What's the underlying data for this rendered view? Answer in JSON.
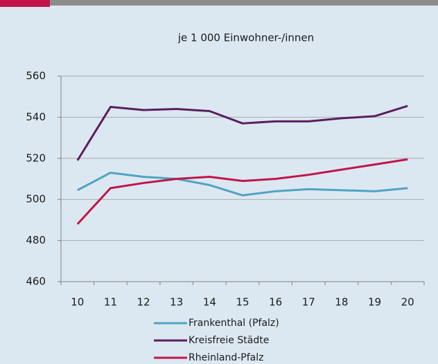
{
  "chart_data": {
    "type": "line",
    "title": "je 1 000 Einwohner-/innen",
    "categories": [
      "10",
      "11",
      "12",
      "13",
      "14",
      "15",
      "16",
      "17",
      "18",
      "19",
      "20"
    ],
    "series": [
      {
        "name": "Frankenthal (Pfalz)",
        "color": "#4fa3c4",
        "values": [
          504.5,
          513,
          511,
          510,
          507,
          502,
          504,
          505,
          504.5,
          504,
          505.5
        ]
      },
      {
        "name": "Kreisfreie Städte",
        "color": "#5a1e5e",
        "values": [
          519,
          545,
          543.5,
          544,
          543,
          537,
          538,
          538,
          539.5,
          540.5,
          545.5
        ]
      },
      {
        "name": "Rheinland-Pfalz",
        "color": "#c0144a",
        "values": [
          488,
          505.5,
          508,
          510,
          511,
          509,
          510,
          512,
          514.5,
          517,
          519.5
        ]
      }
    ],
    "ylim": [
      460,
      560
    ],
    "yticks": [
      460,
      480,
      500,
      520,
      540,
      560
    ],
    "grid": true
  }
}
